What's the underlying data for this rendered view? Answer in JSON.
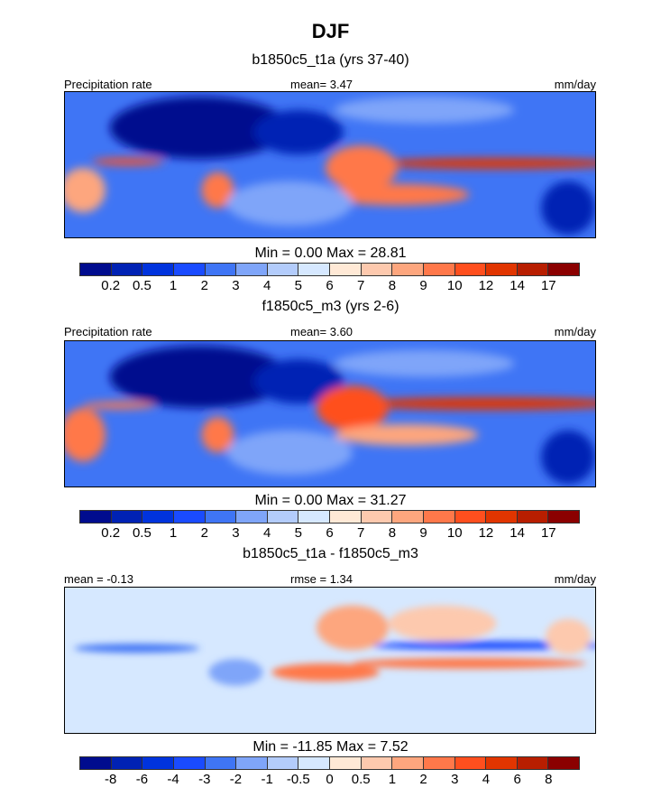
{
  "title": "DJF",
  "colors": [
    "#000C8E",
    "#0022B4",
    "#0033DD",
    "#1A4BFF",
    "#3F75F5",
    "#7FA5F9",
    "#B3CCFB",
    "#D6E8FF",
    "#FFE9D6",
    "#FDC9AE",
    "#FDA67E",
    "#FF784A",
    "#FF4F1E",
    "#E13500",
    "#B81E00",
    "#8B0000"
  ],
  "panels": [
    {
      "subtitle": "b1850c5_t1a (yrs 37-40)",
      "left": "Precipitation rate",
      "center": "mean=   3.47",
      "right": "mm/day",
      "minmax": "Min =   0.00 Max =  28.81",
      "ticks": [
        "0.2",
        "0.5",
        "1",
        "2",
        "3",
        "4",
        "5",
        "6",
        "7",
        "8",
        "9",
        "10",
        "12",
        "14",
        "17"
      ]
    },
    {
      "subtitle": "f1850c5_m3 (yrs 2-6)",
      "left": "Precipitation rate",
      "center": "mean=   3.60",
      "right": "mm/day",
      "minmax": "Min =   0.00 Max =  31.27",
      "ticks": [
        "0.2",
        "0.5",
        "1",
        "2",
        "3",
        "4",
        "5",
        "6",
        "7",
        "8",
        "9",
        "10",
        "12",
        "14",
        "17"
      ]
    },
    {
      "subtitle": "b1850c5_t1a - f1850c5_m3",
      "left": "mean =  -0.13",
      "center": "rmse =   1.34",
      "right": "mm/day",
      "minmax": "Min = -11.85 Max =   7.52",
      "ticks": [
        "-8",
        "-6",
        "-4",
        "-3",
        "-2",
        "-1",
        "-0.5",
        "0",
        "0.5",
        "1",
        "2",
        "3",
        "4",
        "6",
        "8"
      ]
    }
  ]
}
